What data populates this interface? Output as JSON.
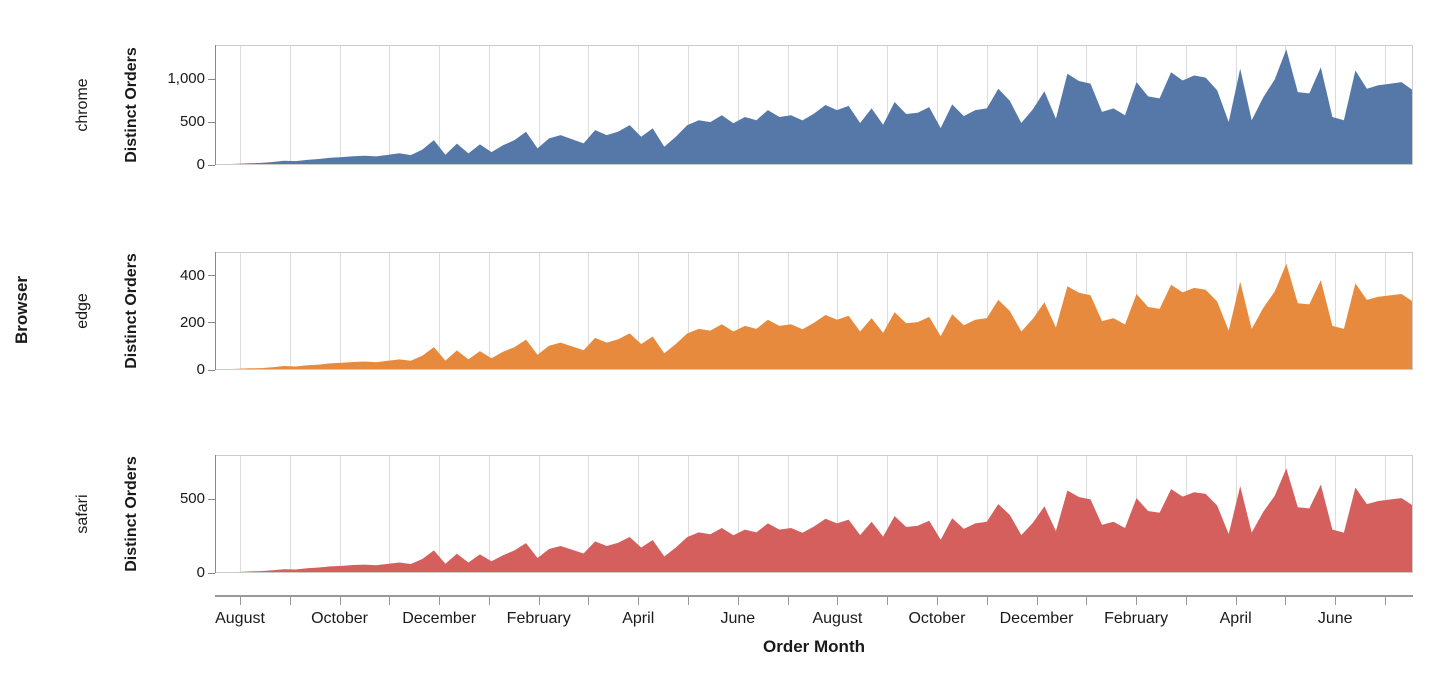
{
  "figure": {
    "row_header_title": "Browser",
    "x_axis_title": "Order Month",
    "y_axis_title": "Distinct Orders"
  },
  "style": {
    "grid_color": "#dddddd",
    "border_color": "#cccccc",
    "y_domain_color": "#888888",
    "x_axis_color": "#999999",
    "text_color": "#1a1a1a",
    "background": "#ffffff"
  },
  "chart_data": {
    "type": "area",
    "facet_field": "Browser",
    "x_field": "Order Month",
    "y_field": "Distinct Orders",
    "x_unit": "weekly points spanning 24 months (mid-July to mid-July, two years)",
    "n_points_per_series": 105,
    "n_month_gridlines": 24,
    "x_tick_labels": [
      "August",
      "October",
      "December",
      "February",
      "April",
      "June",
      "August",
      "October",
      "December",
      "February",
      "April",
      "June"
    ],
    "grid": true,
    "legend": false,
    "facets": [
      {
        "name": "chrome",
        "color": "#5578a8",
        "y_max": 1400,
        "y_ticks": [
          0,
          500,
          1000
        ],
        "y_tick_labels": [
          "0",
          "500",
          "1,000"
        ],
        "values": [
          8,
          10,
          14,
          20,
          25,
          35,
          50,
          45,
          60,
          70,
          85,
          92,
          103,
          108,
          100,
          118,
          136,
          116,
          180,
          291,
          120,
          250,
          135,
          240,
          150,
          230,
          291,
          387,
          194,
          310,
          349,
          300,
          252,
          407,
          349,
          390,
          465,
          330,
          427,
          213,
          329,
          465,
          523,
          500,
          581,
          488,
          560,
          523,
          640,
          560,
          581,
          520,
          600,
          700,
          640,
          690,
          490,
          660,
          470,
          735,
          595,
          610,
          675,
          430,
          707,
          570,
          640,
          660,
          890,
          750,
          490,
          650,
          860,
          540,
          1065,
          980,
          950,
          620,
          660,
          580,
          967,
          800,
          777,
          1083,
          986,
          1044,
          1020,
          870,
          502,
          1122,
          522,
          790,
          1000,
          1350,
          850,
          835,
          1140,
          560,
          522,
          1102,
          890,
          930,
          948,
          967,
          870
        ]
      },
      {
        "name": "edge",
        "color": "#e78a3e",
        "y_max": 500,
        "y_ticks": [
          0,
          200,
          400
        ],
        "y_tick_labels": [
          "0",
          "200",
          "400"
        ],
        "values": [
          3,
          3,
          5,
          7,
          8,
          12,
          17,
          15,
          20,
          23,
          28,
          31,
          34,
          36,
          33,
          39,
          45,
          39,
          60,
          97,
          40,
          83,
          45,
          80,
          50,
          77,
          97,
          129,
          65,
          103,
          116,
          100,
          84,
          136,
          116,
          130,
          155,
          110,
          142,
          71,
          110,
          155,
          174,
          167,
          194,
          163,
          187,
          174,
          213,
          187,
          194,
          173,
          200,
          233,
          213,
          230,
          163,
          220,
          157,
          245,
          198,
          203,
          225,
          143,
          236,
          190,
          213,
          220,
          297,
          250,
          163,
          217,
          287,
          180,
          355,
          327,
          317,
          207,
          220,
          193,
          322,
          267,
          259,
          361,
          329,
          348,
          340,
          290,
          167,
          374,
          174,
          263,
          333,
          450,
          283,
          278,
          380,
          187,
          174,
          367,
          297,
          310,
          316,
          322,
          290
        ]
      },
      {
        "name": "safari",
        "color": "#d55f5d",
        "y_max": 800,
        "y_ticks": [
          0,
          500
        ],
        "y_tick_labels": [
          "0",
          "500"
        ],
        "values": [
          4,
          5,
          7,
          11,
          13,
          18,
          26,
          24,
          32,
          37,
          45,
          48,
          54,
          57,
          53,
          62,
          71,
          61,
          95,
          153,
          63,
          131,
          71,
          126,
          79,
          121,
          153,
          203,
          102,
          163,
          183,
          158,
          132,
          214,
          183,
          205,
          244,
          173,
          224,
          112,
          173,
          244,
          275,
          263,
          305,
          256,
          294,
          275,
          336,
          294,
          305,
          273,
          315,
          368,
          336,
          362,
          257,
          347,
          247,
          386,
          312,
          320,
          354,
          226,
          371,
          299,
          336,
          347,
          467,
          394,
          257,
          341,
          452,
          284,
          559,
          515,
          499,
          326,
          347,
          305,
          508,
          420,
          408,
          569,
          518,
          548,
          536,
          457,
          264,
          589,
          274,
          415,
          525,
          709,
          446,
          438,
          599,
          294,
          274,
          579,
          467,
          488,
          498,
          508,
          457
        ]
      }
    ]
  }
}
